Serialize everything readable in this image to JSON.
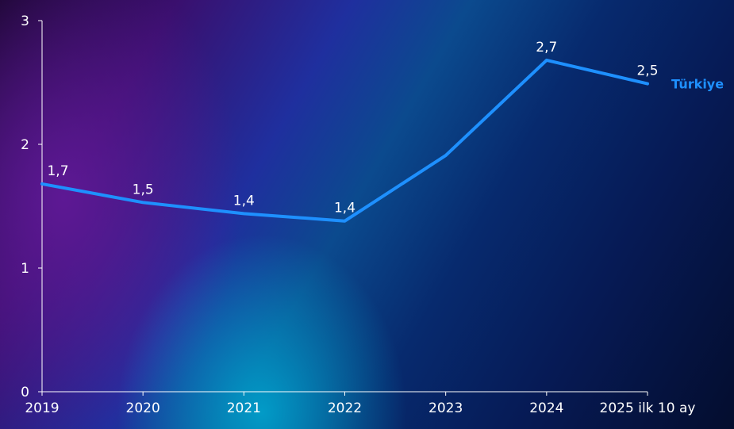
{
  "chart_data": {
    "type": "line",
    "title": "",
    "xlabel": "",
    "ylabel": "",
    "categories": [
      "2019",
      "2020",
      "2021",
      "2022",
      "2023",
      "2024",
      "2025 ilk 10 ay"
    ],
    "ylim": [
      0,
      3
    ],
    "yticks": [
      "0",
      "1",
      "2",
      "3"
    ],
    "grid": false,
    "series": [
      {
        "name": "Türkiye",
        "values": [
          1.68,
          1.53,
          1.44,
          1.38,
          1.91,
          2.68,
          2.49
        ],
        "labels": [
          "1,7",
          "1,5",
          "1,4",
          "1,4",
          "",
          "2,7",
          "2,5"
        ],
        "color": "#1e90ff"
      }
    ]
  }
}
